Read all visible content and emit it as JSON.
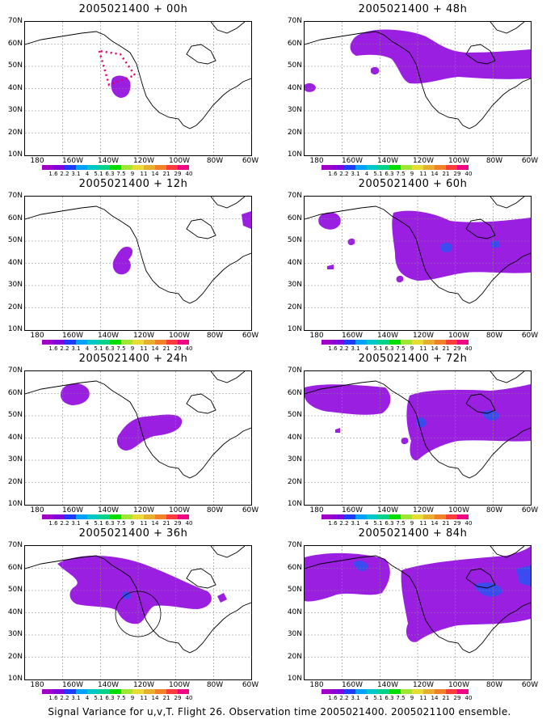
{
  "panels": [
    {
      "title": "2005021400 + 00h"
    },
    {
      "title": "2005021400 + 12h"
    },
    {
      "title": "2005021400 + 24h"
    },
    {
      "title": "2005021400 + 36h"
    },
    {
      "title": "2005021400 + 48h"
    },
    {
      "title": "2005021400 + 60h"
    },
    {
      "title": "2005021400 + 72h"
    },
    {
      "title": "2005021400 + 84h"
    }
  ],
  "y_labels": [
    "70N",
    "60N",
    "50N",
    "40N",
    "30N",
    "20N",
    "10N"
  ],
  "x_labels": [
    "180",
    "160W",
    "140W",
    "120W",
    "100W",
    "80W",
    "60W"
  ],
  "colorbar": {
    "labels": [
      "1.6",
      "2.2",
      "3.1",
      "4",
      "5.1",
      "6.3",
      "7.5",
      "9",
      "11",
      "14",
      "21",
      "29",
      "40"
    ],
    "colors": [
      "#a000c8",
      "#8200dc",
      "#1e3cff",
      "#00a0ff",
      "#00c8c8",
      "#00d28c",
      "#00dc00",
      "#a0e632",
      "#e6dc32",
      "#e6af2d",
      "#f08228",
      "#fa3c3c",
      "#f00082"
    ]
  },
  "footer": "Signal Variance for u,v,T. Flight 26. Observation time 2005021400. 2005021100 ensemble."
}
